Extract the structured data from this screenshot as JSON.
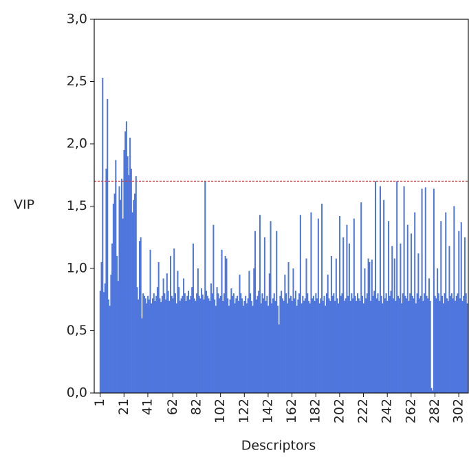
{
  "chart_data": {
    "type": "bar",
    "xlabel": "Descriptors",
    "ylabel": "VIP",
    "color": "#4f76dc",
    "reference_color": "#d23c3c",
    "reference_line": 1.7,
    "xlim": [
      -4,
      310
    ],
    "ylim": [
      0,
      3.0
    ],
    "xticks": [
      1,
      21,
      41,
      62,
      82,
      102,
      122,
      142,
      162,
      182,
      202,
      222,
      242,
      262,
      282,
      302
    ],
    "yticks": [
      {
        "value": 0,
        "label": "0,0"
      },
      {
        "value": 0.5,
        "label": "0,5"
      },
      {
        "value": 1.0,
        "label": "1,0"
      },
      {
        "value": 1.5,
        "label": "1,5"
      },
      {
        "value": 2.0,
        "label": "2,0"
      },
      {
        "value": 2.5,
        "label": "2,5"
      },
      {
        "value": 3.0,
        "label": "3,0"
      }
    ],
    "x": [
      1,
      2,
      3,
      4,
      5,
      6,
      7,
      8,
      9,
      10,
      11,
      12,
      13,
      14,
      15,
      16,
      17,
      18,
      19,
      20,
      21,
      22,
      23,
      24,
      25,
      26,
      27,
      28,
      29,
      30,
      31,
      32,
      33,
      34,
      35,
      36,
      37,
      38,
      39,
      40,
      41,
      42,
      43,
      44,
      45,
      46,
      47,
      48,
      49,
      50,
      51,
      52,
      53,
      54,
      55,
      56,
      57,
      58,
      59,
      60,
      61,
      62,
      63,
      64,
      65,
      66,
      67,
      68,
      69,
      70,
      71,
      72,
      73,
      74,
      75,
      76,
      77,
      78,
      79,
      80,
      81,
      82,
      83,
      84,
      85,
      86,
      87,
      88,
      89,
      90,
      91,
      92,
      93,
      94,
      95,
      96,
      97,
      98,
      99,
      100,
      101,
      102,
      103,
      104,
      105,
      106,
      107,
      108,
      109,
      110,
      111,
      112,
      113,
      114,
      115,
      116,
      117,
      118,
      119,
      120,
      121,
      122,
      123,
      124,
      125,
      126,
      127,
      128,
      129,
      130,
      131,
      132,
      133,
      134,
      135,
      136,
      137,
      138,
      139,
      140,
      141,
      142,
      143,
      144,
      145,
      146,
      147,
      148,
      149,
      150,
      151,
      152,
      153,
      154,
      155,
      156,
      157,
      158,
      159,
      160,
      161,
      162,
      163,
      164,
      165,
      166,
      167,
      168,
      169,
      170,
      171,
      172,
      173,
      174,
      175,
      176,
      177,
      178,
      179,
      180,
      181,
      182,
      183,
      184,
      185,
      186,
      187,
      188,
      189,
      190,
      191,
      192,
      193,
      194,
      195,
      196,
      197,
      198,
      199,
      200,
      201,
      202,
      203,
      204,
      205,
      206,
      207,
      208,
      209,
      210,
      211,
      212,
      213,
      214,
      215,
      216,
      217,
      218,
      219,
      220,
      221,
      222,
      223,
      224,
      225,
      226,
      227,
      228,
      229,
      230,
      231,
      232,
      233,
      234,
      235,
      236,
      237,
      238,
      239,
      240,
      241,
      242,
      243,
      244,
      245,
      246,
      247,
      248,
      249,
      250,
      251,
      252,
      253,
      254,
      255,
      256,
      257,
      258,
      259,
      260,
      261,
      262,
      263,
      264,
      265,
      266,
      267,
      268,
      269,
      270,
      271,
      272,
      273,
      274,
      275,
      276,
      277,
      278,
      279,
      280,
      281,
      282,
      283,
      284,
      285,
      286,
      287,
      288,
      289,
      290,
      291,
      292,
      293,
      294,
      295,
      296,
      297,
      298,
      299,
      300,
      301,
      302,
      303,
      304,
      305,
      306,
      307,
      308,
      309
    ],
    "values": [
      0.82,
      1.05,
      2.53,
      0.81,
      0.88,
      1.8,
      2.36,
      0.75,
      0.7,
      0.95,
      1.2,
      1.52,
      1.6,
      1.87,
      1.1,
      0.9,
      1.66,
      1.55,
      1.72,
      1.4,
      1.95,
      2.1,
      2.18,
      1.9,
      1.75,
      2.05,
      1.8,
      1.45,
      1.55,
      1.6,
      1.74,
      0.85,
      0.75,
      1.22,
      1.25,
      0.6,
      0.8,
      0.78,
      0.76,
      0.72,
      0.78,
      0.75,
      1.15,
      0.72,
      0.76,
      0.8,
      0.74,
      0.78,
      0.85,
      1.05,
      0.76,
      0.73,
      0.78,
      0.92,
      0.8,
      0.75,
      0.96,
      0.82,
      0.74,
      1.1,
      0.78,
      0.76,
      1.16,
      0.8,
      0.72,
      0.98,
      0.85,
      0.74,
      0.76,
      0.78,
      0.92,
      0.8,
      0.74,
      0.78,
      0.82,
      0.75,
      0.78,
      0.85,
      1.2,
      0.76,
      0.74,
      0.8,
      1.0,
      0.78,
      0.76,
      0.84,
      0.79,
      0.75,
      1.7,
      0.82,
      0.78,
      0.76,
      0.74,
      0.88,
      0.8,
      1.35,
      0.75,
      0.7,
      0.85,
      0.8,
      0.76,
      0.78,
      1.15,
      0.74,
      0.8,
      1.1,
      1.08,
      0.76,
      0.7,
      0.75,
      0.84,
      0.78,
      0.8,
      0.72,
      0.76,
      0.78,
      0.74,
      0.95,
      0.8,
      0.76,
      0.7,
      0.74,
      0.78,
      0.72,
      0.76,
      0.98,
      0.8,
      0.74,
      0.7,
      1.0,
      1.3,
      0.75,
      0.78,
      0.82,
      1.43,
      0.72,
      0.8,
      0.76,
      1.25,
      0.74,
      0.78,
      0.7,
      0.96,
      1.38,
      0.72,
      0.76,
      0.8,
      0.74,
      1.3,
      0.7,
      0.55,
      0.78,
      0.82,
      0.76,
      0.74,
      0.95,
      0.8,
      0.72,
      1.05,
      0.76,
      0.78,
      0.74,
      1.0,
      0.76,
      0.82,
      0.7,
      0.75,
      0.8,
      1.43,
      0.72,
      0.78,
      0.74,
      0.76,
      1.08,
      0.8,
      0.74,
      0.72,
      1.45,
      0.76,
      0.78,
      0.74,
      0.8,
      0.76,
      1.4,
      0.72,
      0.76,
      1.52,
      0.74,
      0.78,
      0.7,
      0.8,
      0.95,
      0.76,
      0.74,
      1.1,
      0.78,
      0.8,
      0.74,
      1.08,
      0.76,
      0.72,
      1.42,
      0.78,
      0.8,
      1.25,
      0.74,
      0.76,
      1.35,
      0.78,
      1.2,
      0.74,
      0.8,
      0.76,
      1.4,
      0.78,
      0.74,
      0.8,
      0.76,
      0.74,
      1.53,
      0.78,
      0.72,
      1.0,
      0.76,
      0.8,
      1.08,
      1.05,
      0.74,
      1.07,
      0.78,
      0.82,
      1.7,
      0.76,
      0.8,
      0.74,
      1.66,
      0.78,
      0.72,
      1.55,
      0.76,
      0.8,
      0.74,
      1.38,
      0.78,
      0.82,
      1.18,
      0.76,
      1.08,
      0.74,
      1.7,
      0.78,
      0.76,
      1.2,
      0.72,
      0.8,
      1.66,
      0.78,
      0.76,
      1.35,
      0.74,
      0.8,
      1.28,
      0.78,
      0.76,
      1.45,
      0.72,
      0.8,
      1.12,
      0.76,
      0.78,
      1.64,
      0.74,
      0.8,
      1.65,
      0.78,
      0.76,
      0.92,
      0.74,
      0.04,
      0.02,
      1.64,
      0.78,
      0.76,
      1.0,
      0.8,
      0.74,
      1.38,
      0.78,
      0.72,
      0.8,
      1.45,
      0.76,
      0.74,
      1.18,
      0.78,
      0.8,
      0.76,
      1.5,
      0.74,
      0.78,
      0.8,
      1.3,
      0.76,
      1.37,
      0.74,
      0.78,
      1.25,
      0.8,
      0.72
    ]
  }
}
